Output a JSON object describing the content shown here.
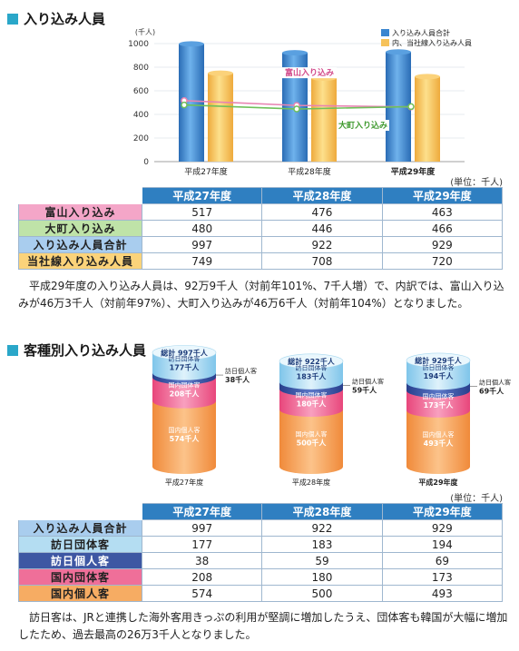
{
  "colors": {
    "blue_bar": "#3a86d0",
    "yellow_bar": "#f6c25a",
    "pink_line": "#e884b2",
    "green_line": "#6fc05a",
    "header_blue": "#2f7fc1",
    "accent": "#2aa7c9"
  },
  "section1": {
    "title": "入り込み人員",
    "unit": "(単位：千人)",
    "paragraph": "平成29年度の入り込み人員は、92万9千人（対前年101%、7千人増）で、内訳では、富山入り込みが46万3千人（対前年97%）、大町入り込みが46万6千人（対前年104%）となりました。"
  },
  "chart1": {
    "chart_data": {
      "type": "bar",
      "categories": [
        "平成27年度",
        "平成28年度",
        "平成29年度"
      ],
      "ylabel": "(千人)",
      "ylim": [
        0,
        1000
      ],
      "yticks": [
        0,
        200,
        400,
        600,
        800,
        1000
      ],
      "series": [
        {
          "name": "入り込み人員合計",
          "values": [
            997,
            922,
            929
          ]
        },
        {
          "name": "内、当社線入り込み人員",
          "values": [
            749,
            708,
            720
          ]
        }
      ],
      "lines": [
        {
          "name": "富山入り込み",
          "values": [
            517,
            476,
            463
          ]
        },
        {
          "name": "大町入り込み",
          "values": [
            480,
            446,
            466
          ]
        }
      ],
      "legend_position": "top-right"
    }
  },
  "table1": {
    "headers": [
      "平成27年度",
      "平成28年度",
      "平成29年度"
    ],
    "rows": [
      {
        "label": "富山入り込み",
        "values": [
          "517",
          "476",
          "463"
        ],
        "color": "#f4a6c8"
      },
      {
        "label": "大町入り込み",
        "values": [
          "480",
          "446",
          "466"
        ],
        "color": "#bfe3a8"
      },
      {
        "label": "入り込み人員合計",
        "values": [
          "997",
          "922",
          "929"
        ],
        "color": "#a9cdee"
      },
      {
        "label": "当社線入り込み人員",
        "values": [
          "749",
          "708",
          "720"
        ],
        "color": "#fbd37a"
      }
    ]
  },
  "section2": {
    "title": "客種別入り込み人員",
    "unit": "(単位：千人)",
    "paragraph": "訪日客は、JRと連携した海外客用きっぷの利用が堅調に増加したうえ、団体客も韓国が大幅に増加したため、過去最高の26万3千人となりました。"
  },
  "chart2": {
    "chart_data": {
      "type": "bar",
      "stacked": true,
      "categories": [
        "平成27年度",
        "平成28年度",
        "平成29年度"
      ],
      "total_label": "総計",
      "totals": [
        997,
        922,
        929
      ],
      "unit_suffix": "千人",
      "series": [
        {
          "name": "国内個人客",
          "values": [
            574,
            500,
            493
          ]
        },
        {
          "name": "国内団体客",
          "values": [
            208,
            180,
            173
          ]
        },
        {
          "name": "訪日個人客",
          "values": [
            38,
            59,
            69
          ]
        },
        {
          "name": "訪日団体客",
          "values": [
            177,
            183,
            194
          ]
        }
      ]
    }
  },
  "table2": {
    "headers": [
      "平成27年度",
      "平成28年度",
      "平成29年度"
    ],
    "rows": [
      {
        "label": "入り込み人員合計",
        "values": [
          "997",
          "922",
          "929"
        ],
        "color": "#a9cdee"
      },
      {
        "label": "訪日団体客",
        "values": [
          "177",
          "183",
          "194"
        ],
        "color": "#b4ddf2"
      },
      {
        "label": "訪日個人客",
        "values": [
          "38",
          "59",
          "69"
        ],
        "color": "#3e57a3"
      },
      {
        "label": "国内団体客",
        "values": [
          "208",
          "180",
          "173"
        ],
        "color": "#ef6f99"
      },
      {
        "label": "国内個人客",
        "values": [
          "574",
          "500",
          "493"
        ],
        "color": "#f6ac63"
      }
    ]
  }
}
